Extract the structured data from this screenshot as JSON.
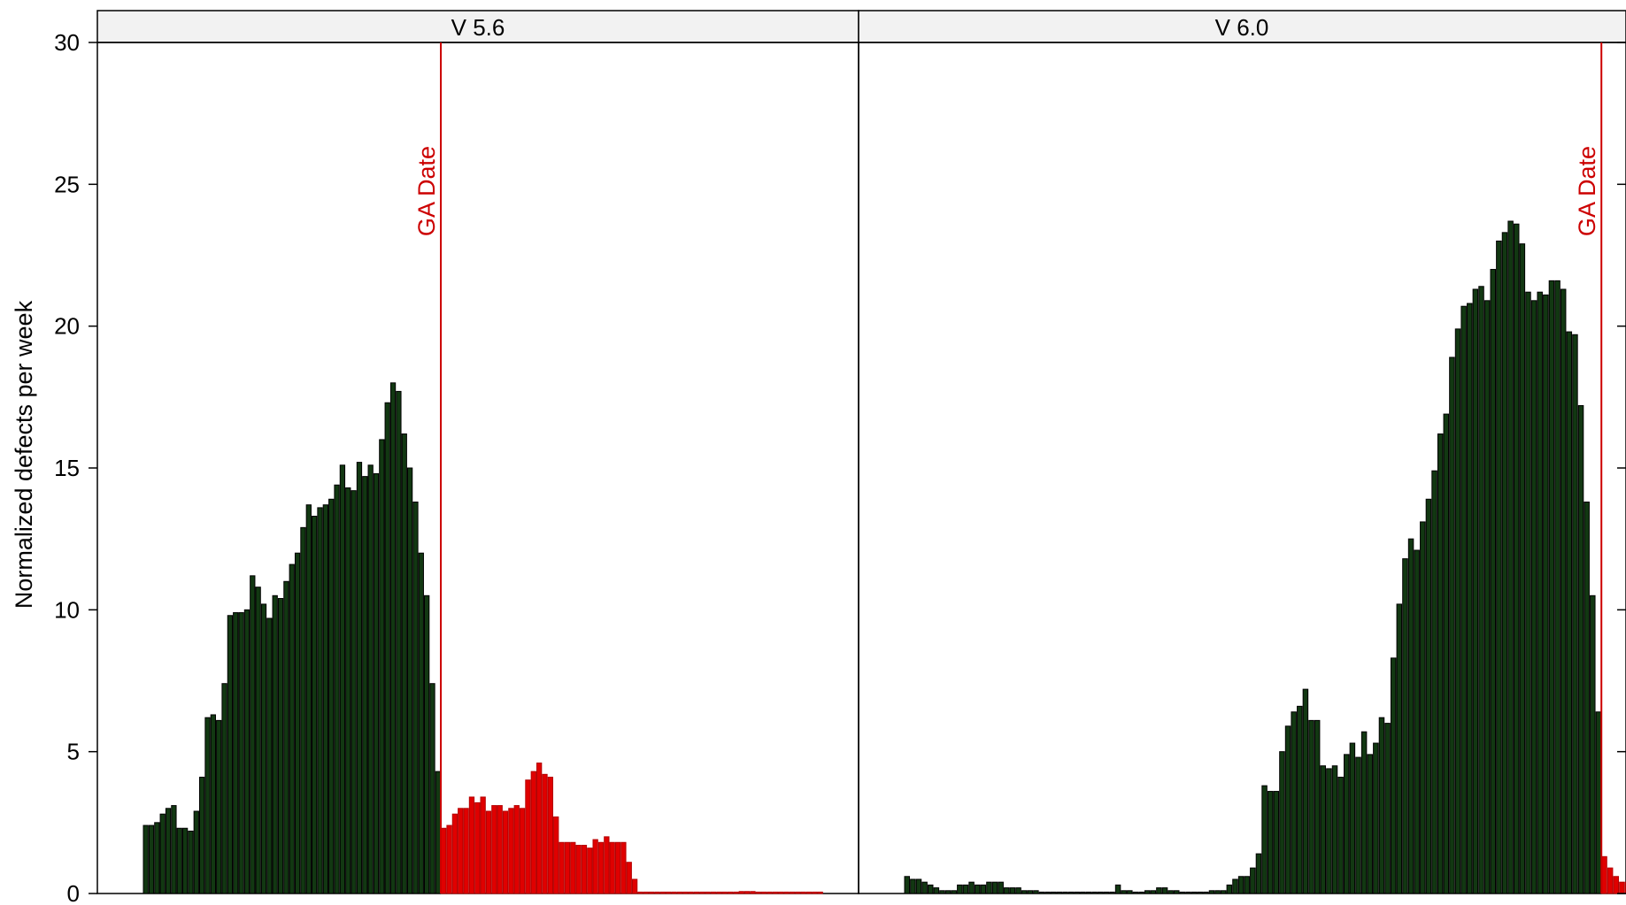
{
  "chart_data": {
    "type": "bar",
    "ylabel": "Normalized defects per week",
    "ylim": [
      0,
      30
    ],
    "y_ticks": [
      0,
      5,
      10,
      15,
      20,
      25,
      30
    ],
    "grid": false,
    "colors": {
      "pre_ga": "#123812",
      "pre_ga_stroke": "#000000",
      "post_ga": "#e00000",
      "post_ga_stroke": "#b40000",
      "ga_line": "#cc0000",
      "strip_bg": "#f2f2f2"
    },
    "panels": [
      {
        "name": "V 5.6",
        "ga_label": "GA Date",
        "pre_ga_values": [
          2.4,
          2.4,
          2.5,
          2.8,
          3.0,
          3.1,
          2.3,
          2.3,
          2.2,
          2.9,
          4.1,
          6.2,
          6.3,
          6.1,
          7.4,
          9.8,
          9.9,
          9.9,
          10.0,
          11.2,
          10.8,
          10.2,
          9.7,
          10.5,
          10.4,
          11.0,
          11.6,
          12.0,
          12.9,
          13.7,
          13.3,
          13.6,
          13.7,
          13.9,
          14.4,
          15.1,
          14.3,
          14.2,
          15.2,
          14.7,
          15.1,
          14.8,
          16.0,
          17.3,
          18.0,
          17.7,
          16.2,
          15.0,
          13.8,
          12.0,
          10.5,
          7.4,
          4.3
        ],
        "post_ga_values": [
          2.3,
          2.4,
          2.8,
          3.0,
          3.0,
          3.4,
          3.2,
          3.4,
          2.9,
          3.1,
          3.1,
          2.9,
          3.0,
          3.1,
          3.0,
          4.0,
          4.3,
          4.6,
          4.2,
          4.1,
          2.7,
          1.8,
          1.8,
          1.8,
          1.7,
          1.7,
          1.6,
          1.9,
          1.8,
          2.0,
          1.8,
          1.8,
          1.8,
          1.1,
          0.5,
          0.05,
          0.05,
          0.05,
          0.05,
          0.05,
          0.05,
          0.05,
          0.05,
          0.05,
          0.05,
          0.05,
          0.05,
          0.05,
          0.05,
          0.05,
          0.05,
          0.05,
          0.05,
          0.07,
          0.07,
          0.07,
          0.05,
          0.05,
          0.05,
          0.05,
          0.05,
          0.05,
          0.05,
          0.05,
          0.05,
          0.05,
          0.05,
          0.05
        ]
      },
      {
        "name": "V 6.0",
        "ga_label": "GA Date",
        "pre_ga_values": [
          0.6,
          0.5,
          0.5,
          0.4,
          0.3,
          0.2,
          0.1,
          0.1,
          0.1,
          0.3,
          0.3,
          0.4,
          0.3,
          0.3,
          0.4,
          0.4,
          0.4,
          0.2,
          0.2,
          0.2,
          0.1,
          0.1,
          0.1,
          0.05,
          0.05,
          0.05,
          0.05,
          0.05,
          0.05,
          0.05,
          0.05,
          0.05,
          0.05,
          0.05,
          0.05,
          0.05,
          0.3,
          0.1,
          0.1,
          0.05,
          0.05,
          0.1,
          0.1,
          0.2,
          0.2,
          0.1,
          0.1,
          0.05,
          0.05,
          0.05,
          0.05,
          0.05,
          0.1,
          0.1,
          0.1,
          0.3,
          0.5,
          0.6,
          0.6,
          0.9,
          1.4,
          3.8,
          3.6,
          3.6,
          5.0,
          5.9,
          6.4,
          6.6,
          7.2,
          6.1,
          6.1,
          4.5,
          4.4,
          4.5,
          4.1,
          4.9,
          5.3,
          4.8,
          5.7,
          4.9,
          5.3,
          6.2,
          6.0,
          8.3,
          10.2,
          11.8,
          12.5,
          12.1,
          13.1,
          13.9,
          14.9,
          16.2,
          16.9,
          18.9,
          19.9,
          20.7,
          20.8,
          21.3,
          21.4,
          20.9,
          22.0,
          23.0,
          23.3,
          23.7,
          23.6,
          22.9,
          21.2,
          20.9,
          21.2,
          21.1,
          21.6,
          21.6,
          21.3,
          19.8,
          19.7,
          17.2,
          13.8,
          10.5,
          6.4
        ],
        "post_ga_values": [
          1.3,
          0.9,
          0.6,
          0.4,
          0.4,
          0.2,
          0.15,
          0.15,
          0.2,
          0.2,
          0.1
        ]
      }
    ]
  }
}
